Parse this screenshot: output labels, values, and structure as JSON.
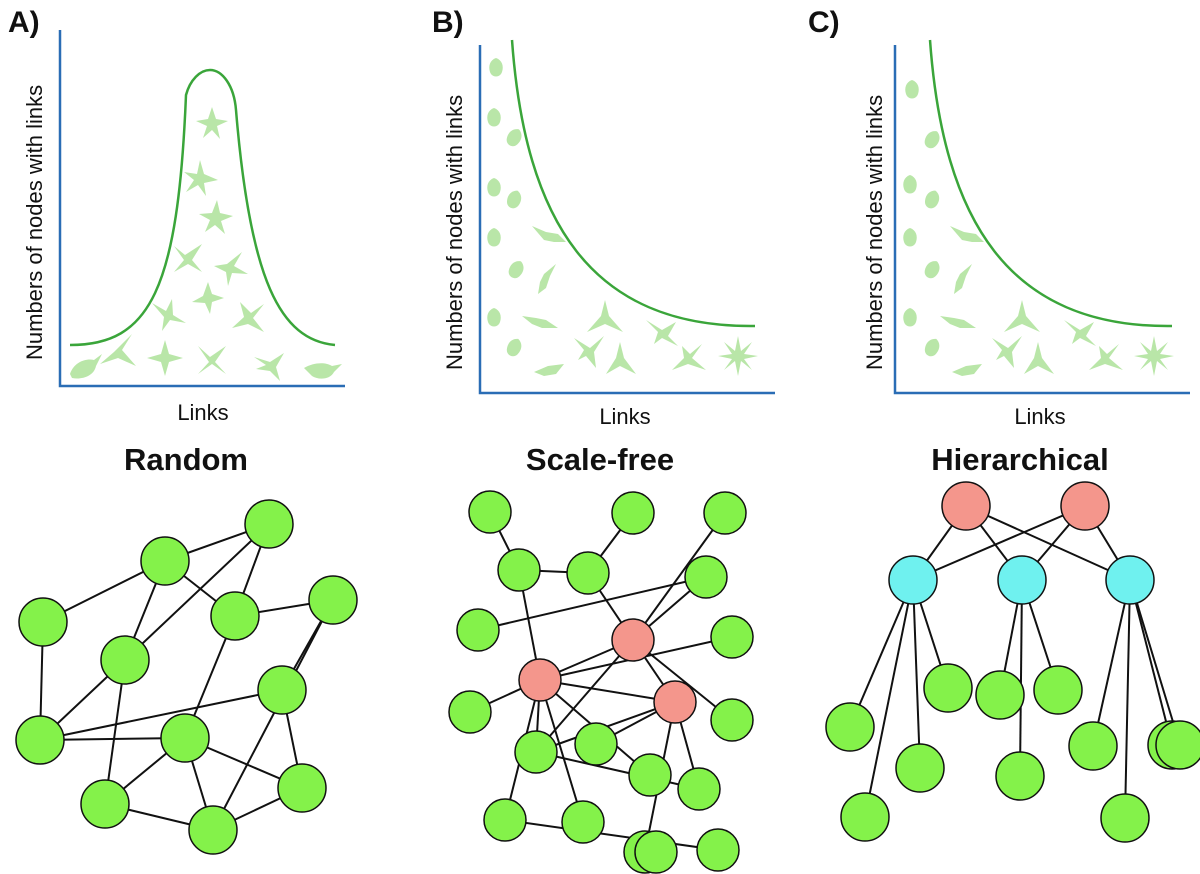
{
  "colors": {
    "axis": "#2a6db5",
    "curve": "#3aa53a",
    "neuron": "#b9e6a8",
    "node_green": "#84f24a",
    "node_red": "#f4968c",
    "node_cyan": "#6ff1ef",
    "edge": "#111111"
  },
  "panels": [
    {
      "id": "random",
      "letter": "A)",
      "xlabel": "Links",
      "ylabel": "Numbers of nodes with links",
      "network_title": "Random",
      "distribution": "bell-shaped"
    },
    {
      "id": "scale-free",
      "letter": "B)",
      "xlabel": "Links",
      "ylabel": "Numbers of nodes with links",
      "network_title": "Scale-free",
      "distribution": "power-law"
    },
    {
      "id": "hierarchical",
      "letter": "C)",
      "xlabel": "Links",
      "ylabel": "Numbers of nodes with links",
      "network_title": "Hierarchical",
      "distribution": "power-law"
    }
  ],
  "networks": {
    "random": {
      "node_colors": [
        "green",
        "green",
        "green",
        "green",
        "green",
        "green",
        "green",
        "green",
        "green",
        "green",
        "green",
        "green"
      ],
      "edges": [
        [
          0,
          1
        ],
        [
          0,
          4
        ],
        [
          1,
          2
        ],
        [
          1,
          5
        ],
        [
          1,
          3
        ],
        [
          2,
          5
        ],
        [
          3,
          4
        ],
        [
          3,
          7
        ],
        [
          4,
          6
        ],
        [
          4,
          8
        ],
        [
          5,
          6
        ],
        [
          6,
          7
        ],
        [
          5,
          9
        ],
        [
          6,
          10
        ],
        [
          7,
          11
        ],
        [
          8,
          9
        ],
        [
          8,
          10
        ],
        [
          9,
          11
        ],
        [
          10,
          11
        ],
        [
          2,
          3
        ],
        [
          6,
          11
        ]
      ]
    },
    "scale-free": {
      "node_colors": [
        "green",
        "green",
        "green",
        "green",
        "green",
        "green",
        "green",
        "red",
        "red",
        "red",
        "green",
        "green",
        "green",
        "green",
        "green",
        "green",
        "green",
        "green",
        "green",
        "green",
        "green",
        "green"
      ],
      "edges": [
        [
          0,
          4
        ],
        [
          4,
          5
        ],
        [
          1,
          5
        ],
        [
          4,
          7
        ],
        [
          5,
          8
        ],
        [
          2,
          8
        ],
        [
          3,
          6
        ],
        [
          6,
          8
        ],
        [
          10,
          7
        ],
        [
          11,
          8
        ],
        [
          7,
          8
        ],
        [
          7,
          9
        ],
        [
          8,
          9
        ],
        [
          12,
          7
        ],
        [
          13,
          9
        ],
        [
          7,
          14
        ],
        [
          7,
          15
        ],
        [
          7,
          16
        ],
        [
          7,
          17
        ],
        [
          14,
          9
        ],
        [
          9,
          18
        ],
        [
          9,
          19
        ],
        [
          14,
          18
        ],
        [
          16,
          20
        ],
        [
          19,
          21
        ],
        [
          8,
          14
        ]
      ]
    },
    "hierarchical": {
      "node_colors": [
        "red",
        "red",
        "cyan",
        "cyan",
        "cyan",
        "green",
        "green",
        "green",
        "green",
        "green",
        "green",
        "green",
        "green",
        "green",
        "green",
        "green"
      ],
      "edges": [
        [
          0,
          2
        ],
        [
          0,
          3
        ],
        [
          0,
          4
        ],
        [
          1,
          2
        ],
        [
          1,
          3
        ],
        [
          1,
          4
        ],
        [
          2,
          5
        ],
        [
          2,
          6
        ],
        [
          2,
          7
        ],
        [
          2,
          8
        ],
        [
          3,
          9
        ],
        [
          3,
          10
        ],
        [
          3,
          11
        ],
        [
          4,
          12
        ],
        [
          4,
          13
        ],
        [
          4,
          14
        ],
        [
          4,
          15
        ]
      ]
    }
  }
}
